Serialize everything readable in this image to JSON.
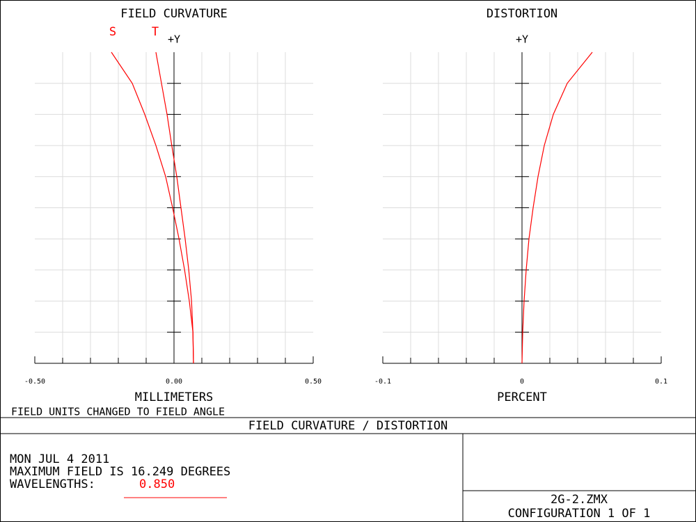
{
  "chart_data": [
    {
      "type": "line",
      "title": "FIELD CURVATURE",
      "xlabel": "MILLIMETERS",
      "ylabel": "+Y",
      "xlim": [
        -0.5,
        0.5
      ],
      "xticks": [
        {
          "value": -0.5,
          "label": "-0.50"
        },
        {
          "value": 0,
          "label": "0.00"
        },
        {
          "value": 0.5,
          "label": "0.50"
        }
      ],
      "xgrid": [
        -0.4,
        -0.3,
        -0.2,
        -0.1,
        0.1,
        0.2,
        0.3,
        0.4
      ],
      "ylim": [
        0,
        16.249
      ],
      "ygrid": [
        1.6249,
        3.2498,
        4.8747,
        6.4996,
        8.1245,
        9.7494,
        11.3743,
        12.9992,
        14.6241
      ],
      "grid": true,
      "y": [
        0,
        1.625,
        3.25,
        4.875,
        6.5,
        8.125,
        9.75,
        11.375,
        13,
        14.625,
        16.249
      ],
      "series": [
        {
          "name": "S",
          "color": "#ff0000",
          "values": [
            0.07,
            0.068,
            0.055,
            0.038,
            0.018,
            -0.005,
            -0.03,
            -0.065,
            -0.105,
            -0.15,
            -0.225
          ]
        },
        {
          "name": "T",
          "color": "#ff0000",
          "values": [
            0.07,
            0.068,
            0.063,
            0.053,
            0.04,
            0.025,
            0.01,
            -0.008,
            -0.025,
            -0.045,
            -0.065
          ]
        }
      ]
    },
    {
      "type": "line",
      "title": "DISTORTION",
      "xlabel": "PERCENT",
      "ylabel": "+Y",
      "xlim": [
        -0.1,
        0.1
      ],
      "xticks": [
        -0.1,
        0,
        0.1
      ],
      "xgrid": [
        -0.08,
        -0.06,
        -0.04,
        -0.02,
        0.02,
        0.04,
        0.06,
        0.08
      ],
      "ylim": [
        0,
        16.249
      ],
      "ygrid": [
        1.6249,
        3.2498,
        4.8747,
        6.4996,
        8.1245,
        9.7494,
        11.3743,
        12.9992,
        14.6241
      ],
      "grid": true,
      "y": [
        0,
        1.625,
        3.25,
        4.875,
        6.5,
        8.125,
        9.75,
        11.375,
        13,
        14.625,
        16.249
      ],
      "series": [
        {
          "color": "#ff0000",
          "values": [
            0,
            0.0005,
            0.0015,
            0.003,
            0.005,
            0.008,
            0.0115,
            0.016,
            0.0225,
            0.0325,
            0.0505
          ]
        }
      ]
    }
  ],
  "footer": {
    "note": "FIELD UNITS CHANGED TO FIELD ANGLE",
    "banner": "FIELD CURVATURE / DISTORTION",
    "date": "MON JUL 4 2011",
    "max_field": "MAXIMUM FIELD IS 16.249 DEGREES",
    "wavelengths_label": "WAVELENGTHS:",
    "wavelength": "0.850",
    "file": "2G-2.ZMX",
    "configuration": "CONFIGURATION 1 OF 1"
  }
}
